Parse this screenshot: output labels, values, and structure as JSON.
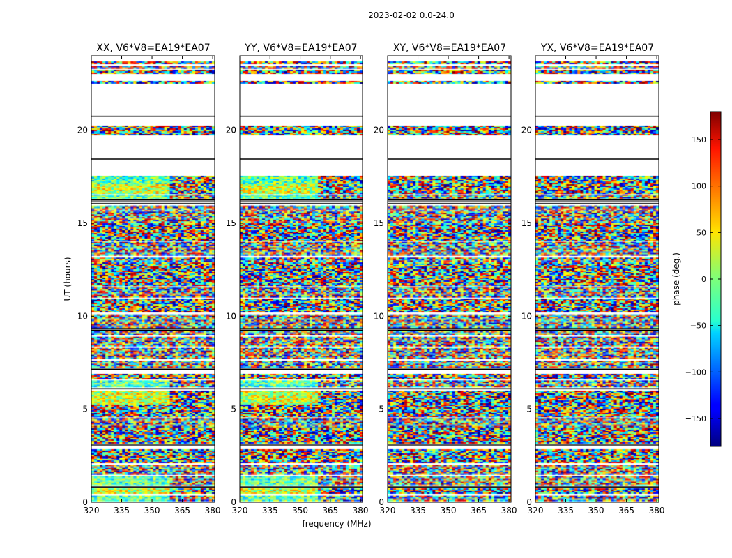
{
  "chart_data": {
    "type": "heatmap",
    "suptitle": "2023-02-02 0.0-24.0",
    "xlabel": "frequency (MHz)",
    "ylabel": "UT (hours)",
    "xlim": [
      320,
      381
    ],
    "ylim": [
      0,
      24
    ],
    "x_ticks": [
      "320",
      "335",
      "350",
      "365",
      "380"
    ],
    "y_ticks": [
      "0",
      "5",
      "10",
      "15",
      "20"
    ],
    "colorbar": {
      "label": "phase (deg.)",
      "range": [
        -180,
        180
      ],
      "ticks": [
        "150",
        "100",
        "50",
        "0",
        "−50",
        "−100",
        "−150"
      ],
      "colormap": "jet"
    },
    "panels": [
      {
        "title": "XX, V6*V8=EA19*EA07",
        "style": "parallel"
      },
      {
        "title": "YY, V6*V8=EA19*EA07",
        "style": "parallel"
      },
      {
        "title": "XY, V6*V8=EA19*EA07",
        "style": "cross"
      },
      {
        "title": "YX, V6*V8=EA19*EA07",
        "style": "cross"
      }
    ],
    "data_blocks_ut": [
      [
        0.05,
        0.35
      ],
      [
        0.45,
        0.75
      ],
      [
        0.9,
        1.4
      ],
      [
        1.5,
        2.0
      ],
      [
        2.1,
        2.85
      ],
      [
        3.2,
        3.45
      ],
      [
        3.5,
        4.05
      ],
      [
        4.1,
        4.55
      ],
      [
        4.6,
        5.25
      ],
      [
        5.3,
        6.0
      ],
      [
        6.2,
        6.55
      ],
      [
        6.65,
        6.9
      ],
      [
        7.25,
        7.6
      ],
      [
        7.7,
        8.3
      ],
      [
        8.4,
        8.9
      ],
      [
        9.0,
        9.2
      ],
      [
        9.4,
        10.1
      ],
      [
        10.2,
        10.95
      ],
      [
        11.05,
        11.6
      ],
      [
        11.7,
        12.3
      ],
      [
        12.35,
        12.9
      ],
      [
        13.0,
        13.15
      ],
      [
        13.25,
        14.0
      ],
      [
        14.05,
        15.0
      ],
      [
        15.05,
        15.7
      ],
      [
        15.75,
        15.95
      ],
      [
        16.3,
        16.55
      ],
      [
        16.6,
        17.1
      ],
      [
        17.15,
        17.55
      ],
      [
        19.75,
        20.25
      ],
      [
        22.55,
        22.65
      ],
      [
        23.05,
        23.25
      ],
      [
        23.35,
        23.45
      ],
      [
        23.55,
        23.7
      ]
    ],
    "scan_separators_ut": [
      0.82,
      3.03,
      3.12,
      6.1,
      7.15,
      9.25,
      9.33,
      16.05,
      16.15,
      16.25,
      18.45,
      20.75
    ]
  }
}
